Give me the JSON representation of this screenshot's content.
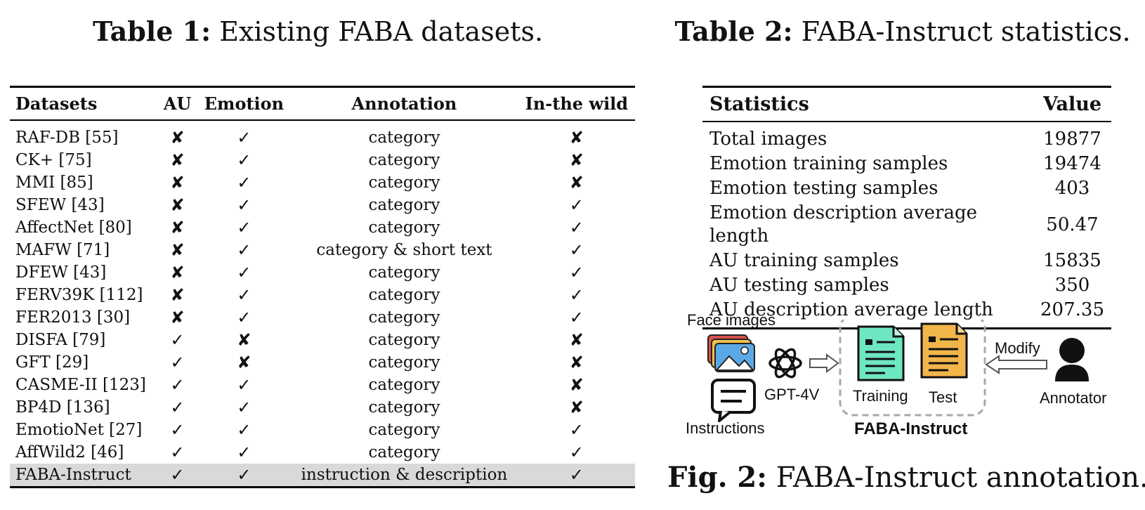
{
  "table1": {
    "caption_prefix": "Table 1:",
    "caption_text": " Existing FABA datasets.",
    "headers": [
      "Datasets",
      "AU",
      "Emotion",
      "Annotation",
      "In-the wild"
    ],
    "rows": [
      [
        "RAF-DB [55]",
        "✘",
        "✓",
        "category",
        "✘"
      ],
      [
        "CK+ [75]",
        "✘",
        "✓",
        "category",
        "✘"
      ],
      [
        "MMI [85]",
        "✘",
        "✓",
        "category",
        "✘"
      ],
      [
        "SFEW [43]",
        "✘",
        "✓",
        "category",
        "✓"
      ],
      [
        "AffectNet [80]",
        "✘",
        "✓",
        "category",
        "✓"
      ],
      [
        "MAFW [71]",
        "✘",
        "✓",
        "category & short text",
        "✓"
      ],
      [
        "DFEW [43]",
        "✘",
        "✓",
        "category",
        "✓"
      ],
      [
        "FERV39K [112]",
        "✘",
        "✓",
        "category",
        "✓"
      ],
      [
        "FER2013 [30]",
        "✘",
        "✓",
        "category",
        "✓"
      ],
      [
        "DISFA [79]",
        "✓",
        "✘",
        "category",
        "✘"
      ],
      [
        "GFT [29]",
        "✓",
        "✘",
        "category",
        "✘"
      ],
      [
        "CASME-II [123]",
        "✓",
        "✓",
        "category",
        "✘"
      ],
      [
        "BP4D [136]",
        "✓",
        "✓",
        "category",
        "✘"
      ],
      [
        "EmotioNet [27]",
        "✓",
        "✓",
        "category",
        "✓"
      ],
      [
        "AffWild2 [46]",
        "✓",
        "✓",
        "category",
        "✓"
      ],
      [
        "FABA-Instruct",
        "✓",
        "✓",
        "instruction & description",
        "✓"
      ]
    ]
  },
  "table2": {
    "caption_prefix": "Table 2:",
    "caption_text": " FABA-Instruct statistics.",
    "headers": [
      "Statistics",
      "Value"
    ],
    "rows": [
      [
        "Total images",
        "19877"
      ],
      [
        "Emotion training samples",
        "19474"
      ],
      [
        "Emotion testing samples",
        "403"
      ],
      [
        "Emotion description average length",
        "50.47"
      ],
      [
        "AU training samples",
        "15835"
      ],
      [
        "AU testing samples",
        "350"
      ],
      [
        "AU description average length",
        "207.35"
      ]
    ]
  },
  "figure": {
    "caption_prefix": "Fig. 2:",
    "caption_text": " FABA-Instruct annotation.",
    "face_images_label": "Face images",
    "instructions_label": "Instructions",
    "gpt_label": "GPT-4V",
    "training_label": "Training",
    "test_label": "Test",
    "dataset_label": "FABA-Instruct",
    "modify_label": "Modify",
    "annotator_label": "Annotator"
  },
  "colors": {
    "highlight_row": "#d9d9d9",
    "training_doc": "#6ee6c2",
    "test_doc": "#f2b54a",
    "dashed_box": "#a8a8a8"
  }
}
